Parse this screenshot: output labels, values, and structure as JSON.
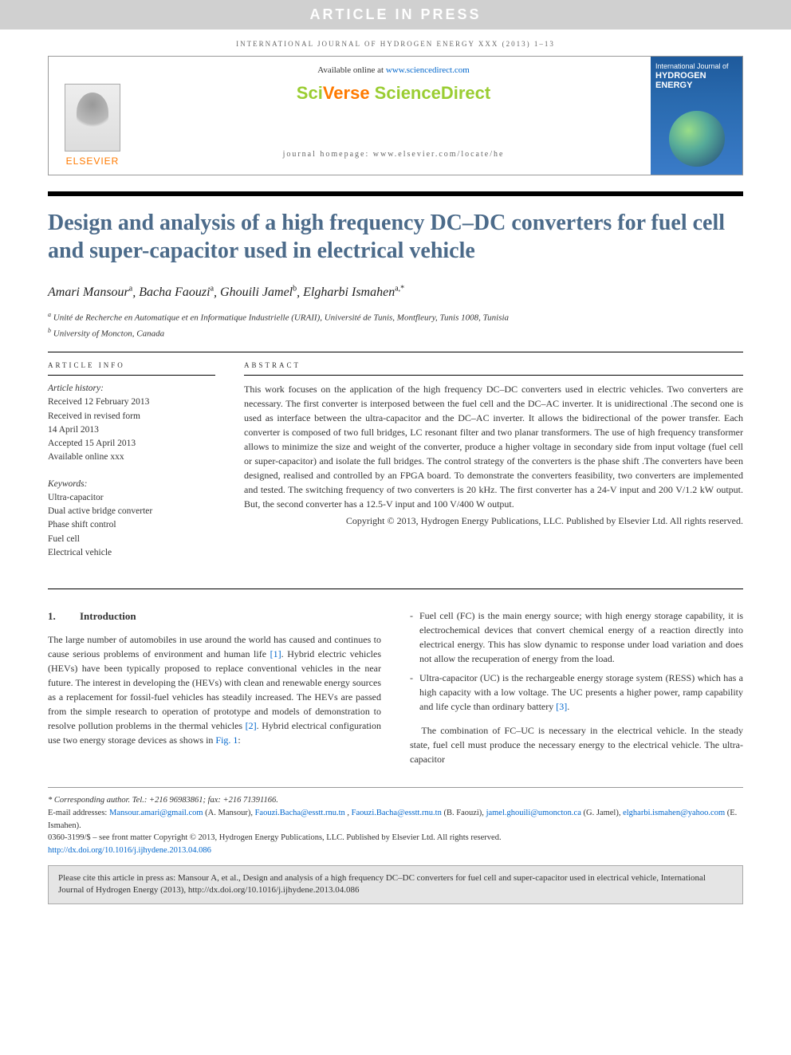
{
  "banner": "ARTICLE IN PRESS",
  "journal_header": "INTERNATIONAL JOURNAL OF HYDROGEN ENERGY XXX (2013) 1–13",
  "header": {
    "available": "Available online at ",
    "available_link": "www.sciencedirect.com",
    "brand_sci": "Sci",
    "brand_verse": "Verse ",
    "brand_sd": "ScienceDirect",
    "homepage": "journal homepage: www.elsevier.com/locate/he",
    "elsevier": "ELSEVIER",
    "cover_pub": "International Journal of",
    "cover_title": "HYDROGEN ENERGY"
  },
  "title": "Design and analysis of a high frequency DC–DC converters for fuel cell and super-capacitor used in electrical vehicle",
  "authors_html": "Amari Mansour|a|, Bacha Faouzi|a|, Ghouili Jamel|b|, Elgharbi Ismahen|a,*",
  "authors": [
    {
      "name": "Amari Mansour",
      "sup": "a"
    },
    {
      "name": "Bacha Faouzi",
      "sup": "a"
    },
    {
      "name": "Ghouili Jamel",
      "sup": "b"
    },
    {
      "name": "Elgharbi Ismahen",
      "sup": "a,*"
    }
  ],
  "affiliations": [
    {
      "sup": "a",
      "text": "Unité de Recherche en Automatique et en Informatique Industrielle (URAII), Université de Tunis, Montfleury, Tunis 1008, Tunisia"
    },
    {
      "sup": "b",
      "text": "University of Moncton, Canada"
    }
  ],
  "info": {
    "label": "ARTICLE INFO",
    "history_head": "Article history:",
    "history": [
      "Received 12 February 2013",
      "Received in revised form",
      "14 April 2013",
      "Accepted 15 April 2013",
      "Available online xxx"
    ],
    "keywords_head": "Keywords:",
    "keywords": [
      "Ultra-capacitor",
      "Dual active bridge converter",
      "Phase shift control",
      "Fuel cell",
      "Electrical vehicle"
    ]
  },
  "abstract": {
    "label": "ABSTRACT",
    "text": "This work focuses on the application of the high frequency DC–DC converters used in electric vehicles. Two converters are necessary. The first converter is interposed between the fuel cell and the DC–AC inverter. It is unidirectional .The second one is used as interface between the ultra-capacitor and the DC–AC inverter. It allows the bidirectional of the power transfer. Each converter is composed of two full bridges, LC resonant filter and two planar transformers. The use of high frequency transformer allows to minimize the size and weight of the converter, produce a higher voltage in secondary side from input voltage (fuel cell or super-capacitor) and isolate the full bridges. The control strategy of the converters is the phase shift .The converters have been designed, realised and controlled by an FPGA board. To demonstrate the converters feasibility, two converters are implemented and tested. The switching frequency of two converters is 20 kHz. The first converter has a 24-V input and 200 V/1.2 kW output. But, the second converter has a 12.5-V input and 100 V/400 W output.",
    "copyright": "Copyright © 2013, Hydrogen Energy Publications, LLC. Published by Elsevier Ltd. All rights reserved."
  },
  "body": {
    "sec_num": "1.",
    "sec_title": "Introduction",
    "left_para": "The large number of automobiles in use around the world has caused and continues to cause serious problems of environment and human life [1]. Hybrid electric vehicles (HEVs) have been typically proposed to replace conventional vehicles in the near future. The interest in developing the (HEVs) with clean and renewable energy sources as a replacement for fossil-fuel vehicles has steadily increased. The HEVs are passed from the simple research to operation of prototype and models of demonstration to resolve pollution problems in the thermal vehicles [2]. Hybrid electrical configuration use two energy storage devices as shows in Fig. 1:",
    "ref1": "[1]",
    "ref2": "[2]",
    "fig1": "Fig. 1",
    "bullets": [
      "Fuel cell (FC) is the main energy source; with high energy storage capability, it is electrochemical devices that convert chemical energy of a reaction directly into electrical energy. This has slow dynamic to response under load variation and does not allow the recuperation of energy from the load.",
      "Ultra-capacitor (UC) is the rechargeable energy storage system (RESS) which has a high capacity with a low voltage. The UC presents a higher power, ramp capability and life cycle than ordinary battery [3]."
    ],
    "ref3": "[3]",
    "right_para": "The combination of FC–UC is necessary in the electrical vehicle. In the steady state, fuel cell must produce the necessary energy to the electrical vehicle. The ultra-capacitor"
  },
  "footer": {
    "corr": "* Corresponding author. Tel.: +216 96983861; fax: +216 71391166.",
    "emails_label": "E-mail addresses: ",
    "emails": [
      {
        "addr": "Mansour.amari@gmail.com",
        "who": "(A. Mansour)"
      },
      {
        "addr": "Faouzi.Bacha@esstt.rnu.tn",
        "who": ""
      },
      {
        "addr": "Faouzi.Bacha@esstt.rnu.tn",
        "who": "(B. Faouzi)"
      },
      {
        "addr": "jamel.ghouili@umoncton.ca",
        "who": "(G. Jamel)"
      },
      {
        "addr": "elgharbi.ismahen@yahoo.com",
        "who": "(E. Ismahen)"
      }
    ],
    "issn": "0360-3199/$ – see front matter Copyright © 2013, Hydrogen Energy Publications, LLC. Published by Elsevier Ltd. All rights reserved.",
    "doi": "http://dx.doi.org/10.1016/j.ijhydene.2013.04.086"
  },
  "citebox": "Please cite this article in press as: Mansour A, et al., Design and analysis of a high frequency DC–DC converters for fuel cell and super-capacitor used in electrical vehicle, International Journal of Hydrogen Energy (2013), http://dx.doi.org/10.1016/j.ijhydene.2013.04.086",
  "colors": {
    "title": "#4c6b8a",
    "link": "#0066cc",
    "banner_bg": "#d0d0d0",
    "elsevier_orange": "#ff7a00",
    "sciverse_green": "#9acd32",
    "cover_blue": "#2a6bb0",
    "citebox_bg": "#e5e5e5"
  }
}
